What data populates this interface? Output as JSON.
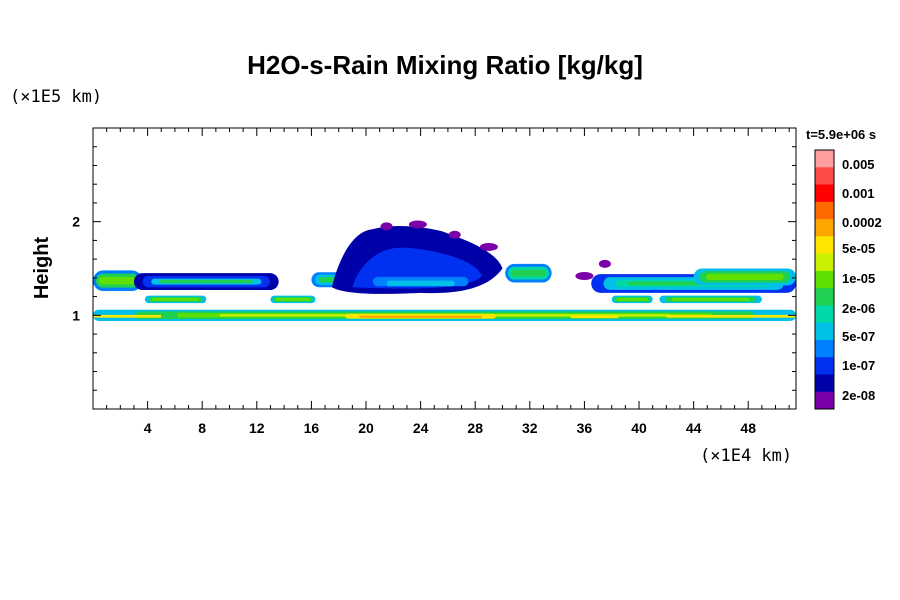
{
  "chart_data": {
    "type": "heatmap",
    "title": "H2O-s-Rain Mixing Ratio [kg/kg]",
    "time_label": "t=5.9e+06 s",
    "ylabel": "Height",
    "y_scale_label": "(×1E5 km)",
    "x_scale_label": "(×1E4 km)",
    "xlim": [
      0,
      51.5
    ],
    "ylim": [
      0,
      3.0
    ],
    "x_ticks": [
      4,
      8,
      12,
      16,
      20,
      24,
      28,
      32,
      36,
      40,
      44,
      48
    ],
    "y_ticks": [
      1,
      2
    ],
    "colorbar": {
      "colors": [
        "#ff9f9f",
        "#ff4a4a",
        "#ff0000",
        "#ff6a00",
        "#ffa500",
        "#ffe600",
        "#c8f000",
        "#60e000",
        "#20d050",
        "#00d8a8",
        "#00c0e8",
        "#0080ff",
        "#0030f0",
        "#0000a8",
        "#7a00a8"
      ],
      "labels": [
        "0.005",
        "0.001",
        "0.0002",
        "5e-05",
        "1e-05",
        "2e-06",
        "5e-07",
        "1e-07",
        "2e-08"
      ]
    },
    "features": [
      {
        "x": [
          0,
          52
        ],
        "y": [
          0.94,
          1.06
        ],
        "level": "5e-07 to 0.0002",
        "color": "#60e000"
      },
      {
        "x": [
          19,
          29
        ],
        "y": [
          0.97,
          1.01
        ],
        "level": "0.0002",
        "color": "#ffa500"
      },
      {
        "x": [
          0,
          3.5
        ],
        "y": [
          1.27,
          1.47
        ],
        "level": "1e-05",
        "color": "#20d050"
      },
      {
        "x": [
          44,
          51.5
        ],
        "y": [
          1.3,
          1.5
        ],
        "level": "1e-05",
        "color": "#20d050"
      },
      {
        "x": [
          17,
          30
        ],
        "y": [
          1.25,
          1.95
        ],
        "level": "2e-08 to 1e-07",
        "color": "#0030f0"
      }
    ]
  }
}
